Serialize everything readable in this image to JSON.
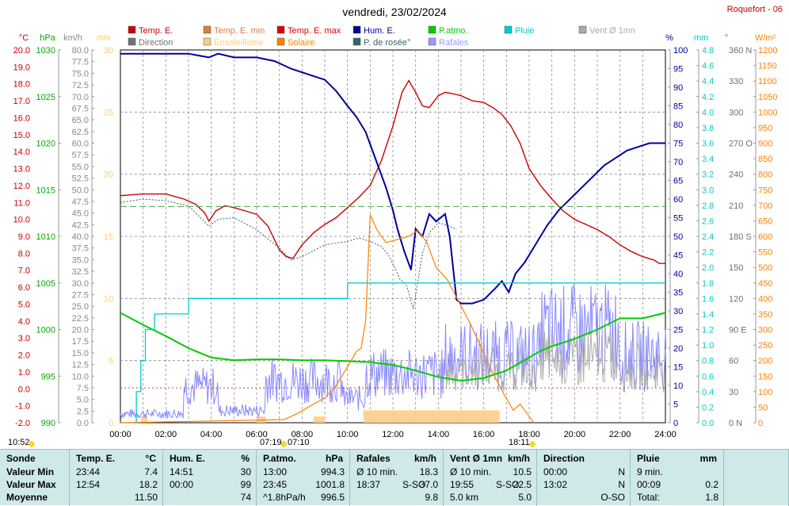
{
  "title": "vendredi, 23/02/2024",
  "station": "Roquefort - 06",
  "legend": [
    {
      "label": "Temp. E.",
      "color": "#cc0000"
    },
    {
      "label": "Temp. E. min",
      "color": "#e07a3a"
    },
    {
      "label": "Temp. E. max",
      "color": "#e00000"
    },
    {
      "label": "Hum. E.",
      "color": "#000099"
    },
    {
      "label": "P.atmo.",
      "color": "#00cc00"
    },
    {
      "label": "Pluie",
      "color": "#00cccc"
    },
    {
      "label": "Vent Ø 1mn",
      "color": "#aaaaaa"
    },
    {
      "label": "Direction",
      "color": "#707070"
    },
    {
      "label": "Ensoleilleme",
      "color": "#ffcc88"
    },
    {
      "label": "Solaire",
      "color": "#ff8000"
    },
    {
      "label": "P. de rosée°",
      "color": "#336666"
    },
    {
      "label": "Rafales",
      "color": "#9999ff"
    }
  ],
  "axes": {
    "temp": {
      "unit": "°C",
      "color": "#cc0000",
      "ticks": [
        "20.0",
        "19.0",
        "18.0",
        "17.0",
        "16.0",
        "15.0",
        "14.0",
        "13.0",
        "12.0",
        "11.0",
        "10.0",
        "9.0",
        "8.0",
        "7.0",
        "6.0",
        "5.0",
        "4.0",
        "3.0",
        "2.0",
        "1.0",
        "0.0",
        "-1.0",
        "-2.0"
      ]
    },
    "press": {
      "unit": "hPa",
      "color": "#00aa00",
      "ticks": [
        "1030",
        "1025",
        "1020",
        "1015",
        "1010",
        "1005",
        "1000",
        "995",
        "990"
      ]
    },
    "wind": {
      "unit": "km/h",
      "color": "#888888",
      "ticks": [
        "80.0",
        "77.5",
        "75.0",
        "72.5",
        "70.0",
        "67.5",
        "65.0",
        "62.5",
        "60.0",
        "57.5",
        "55.0",
        "52.5",
        "50.0",
        "47.5",
        "45.0",
        "42.5",
        "40.0",
        "37.5",
        "35.0",
        "32.5",
        "30.0",
        "27.5",
        "25.0",
        "22.5",
        "20.0",
        "17.5",
        "15.0",
        "12.5",
        "10.0",
        "7.5",
        "5.0",
        "2.5",
        "0.0"
      ]
    },
    "min": {
      "unit": "min",
      "color": "#ffcc66",
      "ticks": [
        "30",
        "25",
        "20",
        "15",
        "10",
        "5",
        "0"
      ]
    },
    "hum": {
      "unit": "%",
      "color": "#000099",
      "ticks": [
        "100",
        "95",
        "90",
        "85",
        "80",
        "75",
        "70",
        "65",
        "60",
        "55",
        "50",
        "45",
        "40",
        "35",
        "30",
        "25",
        "20",
        "15",
        "10",
        "5",
        "0"
      ]
    },
    "rain": {
      "unit": "mm",
      "color": "#00cccc",
      "ticks": [
        "4.8",
        "4.6",
        "4.4",
        "4.2",
        "4.0",
        "3.8",
        "3.6",
        "3.4",
        "3.2",
        "3.0",
        "2.8",
        "2.6",
        "2.4",
        "2.2",
        "2.0",
        "1.8",
        "1.6",
        "1.4",
        "1.2",
        "1.0",
        "0.8",
        "0.6",
        "0.4",
        "0.2",
        "0.0"
      ]
    },
    "dir": {
      "unit": "°",
      "color": "#707070",
      "ticks": [
        "360 N",
        "330",
        "300",
        "270 O",
        "240",
        "210",
        "180 S",
        "150",
        "120",
        "90 E",
        "60",
        "30",
        "0 N"
      ]
    },
    "solar": {
      "unit": "W/m²",
      "color": "#ff8000",
      "ticks": [
        "1200",
        "1150",
        "1100",
        "1050",
        "1000",
        "950",
        "900",
        "850",
        "800",
        "750",
        "700",
        "650",
        "600",
        "550",
        "500",
        "450",
        "400",
        "350",
        "300",
        "250",
        "200",
        "150",
        "100",
        "50",
        "0"
      ]
    },
    "time": {
      "ticks": [
        "00:00",
        "02:00",
        "04:00",
        "06:00",
        "08:00",
        "10:00",
        "12:00",
        "14:00",
        "16:00",
        "18:00",
        "20:00",
        "22:00",
        "24:00"
      ]
    }
  },
  "markers": {
    "sunrise": "07:19",
    "sunrise2": "07:10",
    "sunset": "18:11",
    "left_time": "10:52"
  },
  "chart_data": {
    "type": "line",
    "x_unit": "hours",
    "x_range": [
      0,
      24
    ],
    "temp_range": [
      -2,
      20
    ],
    "hum_range": [
      0,
      100
    ],
    "press_range": [
      990,
      1030
    ],
    "solar_range": [
      0,
      1200
    ],
    "rain_range": [
      0,
      4.8
    ],
    "wind_range": [
      0,
      80
    ],
    "series": [
      {
        "name": "Temp. E.",
        "axis": "temp",
        "x": [
          0,
          1,
          2,
          2.8,
          3.3,
          3.7,
          3.9,
          4.2,
          4.6,
          5.0,
          5.5,
          6.0,
          6.5,
          7.0,
          7.3,
          7.6,
          8.0,
          8.5,
          9.0,
          9.5,
          10.0,
          10.5,
          11.0,
          11.5,
          12.0,
          12.4,
          12.7,
          13.0,
          13.3,
          13.6,
          14.0,
          14.3,
          14.7,
          15.0,
          15.5,
          16.0,
          16.4,
          16.8,
          17.2,
          17.6,
          18.0,
          18.5,
          19.0,
          19.5,
          20.0,
          20.5,
          21.0,
          21.5,
          22.0,
          22.5,
          23.0,
          23.5,
          23.73,
          24.0
        ],
        "values": [
          11.4,
          11.5,
          11.5,
          11.2,
          10.9,
          10.4,
          9.9,
          10.5,
          10.8,
          10.7,
          10.5,
          10.3,
          9.6,
          8.2,
          7.8,
          7.7,
          8.5,
          9.2,
          9.7,
          10.1,
          10.7,
          11.3,
          12.0,
          13.5,
          15.5,
          17.5,
          18.2,
          17.5,
          16.7,
          16.6,
          17.3,
          17.5,
          17.4,
          17.3,
          17.0,
          16.9,
          16.6,
          16.2,
          15.5,
          14.5,
          13.0,
          12.0,
          11.2,
          10.5,
          10.0,
          9.7,
          9.4,
          9.0,
          8.5,
          8.1,
          7.8,
          7.6,
          7.4,
          7.4
        ]
      },
      {
        "name": "P. de rosée°",
        "axis": "temp",
        "x": [
          0,
          1,
          2,
          3,
          3.9,
          4.3,
          5,
          6,
          7,
          7.5,
          8,
          9,
          10,
          10.5,
          11,
          11.5,
          11.8,
          12.1,
          12.3,
          12.6,
          12.9,
          13.3,
          13.6,
          14,
          14.5,
          14.8
        ],
        "values": [
          11.0,
          11.2,
          11.1,
          10.8,
          9.6,
          10.0,
          10.1,
          9.4,
          8.3,
          7.6,
          7.8,
          8.5,
          8.7,
          8.9,
          8.7,
          8.4,
          7.9,
          7.1,
          6.5,
          6.1,
          4.7,
          8.0,
          9.2,
          9.8,
          9.6,
          9.4
        ]
      },
      {
        "name": "Hum. E.",
        "axis": "hum",
        "x": [
          0,
          1.5,
          3,
          3.9,
          4.3,
          5,
          6,
          6.8,
          7.5,
          8.5,
          9.0,
          9.5,
          10.0,
          10.4,
          10.8,
          11.1,
          11.4,
          11.7,
          12.0,
          12.2,
          12.5,
          12.8,
          13.0,
          13.3,
          13.6,
          13.9,
          14.3,
          14.5,
          14.8,
          15.0,
          15.5,
          16.0,
          16.5,
          16.8,
          17.1,
          17.4,
          17.8,
          18.3,
          18.8,
          19.3,
          19.8,
          20.3,
          20.8,
          21.3,
          21.8,
          22.3,
          22.8,
          23.3,
          24.0
        ],
        "values": [
          99,
          99,
          99,
          98,
          99,
          98,
          98,
          97,
          95,
          93,
          92,
          89,
          85,
          82,
          78,
          73,
          68,
          63,
          57,
          52,
          46,
          41,
          52,
          50,
          56,
          54,
          56,
          50,
          33,
          32,
          32,
          33,
          36,
          38,
          35,
          40,
          43,
          48,
          53,
          57,
          60,
          63,
          66,
          69,
          71,
          73,
          74,
          75,
          75
        ]
      },
      {
        "name": "P.atmo.",
        "axis": "press",
        "x": [
          0,
          1,
          2,
          3,
          4,
          5,
          6,
          7,
          8,
          9,
          10,
          11,
          12,
          13,
          14,
          15,
          16,
          17,
          17.5,
          18,
          18.5,
          19,
          20,
          21,
          22,
          23,
          24
        ],
        "values": [
          1001.8,
          1000.5,
          999.3,
          998.0,
          997.0,
          996.7,
          996.8,
          996.8,
          996.7,
          996.7,
          996.6,
          996.5,
          996.2,
          995.6,
          994.9,
          994.5,
          994.8,
          995.6,
          996.3,
          997.0,
          997.7,
          998.2,
          999.0,
          1000.0,
          1001.2,
          1001.2,
          1001.8
        ]
      },
      {
        "name": "Pluie",
        "axis": "rain",
        "x": [
          0,
          0.4,
          0.7,
          0.9,
          1.1,
          1.5,
          2.9,
          3.0,
          7.0,
          9.9,
          10.0,
          24
        ],
        "values": [
          0,
          0,
          0.4,
          0.8,
          1.2,
          1.4,
          1.4,
          1.6,
          1.6,
          1.6,
          1.8,
          1.8
        ]
      },
      {
        "name": "Solaire",
        "axis": "solar",
        "x": [
          0,
          7.2,
          7.8,
          8.5,
          9.0,
          9.5,
          10.0,
          10.4,
          10.6,
          10.8,
          11.0,
          11.3,
          11.7,
          12.2,
          12.7,
          13.1,
          13.5,
          13.9,
          14.4,
          14.9,
          15.4,
          15.9,
          16.4,
          16.9,
          17.3,
          17.6,
          17.9,
          18.2
        ],
        "values": [
          0,
          10,
          30,
          60,
          80,
          120,
          180,
          230,
          240,
          330,
          670,
          620,
          580,
          590,
          600,
          620,
          580,
          500,
          460,
          390,
          320,
          240,
          160,
          90,
          40,
          60,
          30,
          0
        ]
      }
    ],
    "wind_avg_peak_kmh": 22.5,
    "gust_peak_kmh": 37.0
  },
  "stats": {
    "sonde": {
      "header": "Sonde",
      "rows": [
        "Valeur Min",
        "Valeur Max",
        "Moyenne"
      ]
    },
    "temp": {
      "header": "Temp. E.",
      "unit": "°C",
      "rows": [
        [
          "23:44",
          "7.4"
        ],
        [
          "12:54",
          "18.2"
        ],
        [
          "",
          "11.50"
        ]
      ]
    },
    "hum": {
      "header": "Hum. E.",
      "unit": "%",
      "rows": [
        [
          "14:51",
          "30"
        ],
        [
          "00:00",
          "99"
        ],
        [
          "",
          "74"
        ]
      ]
    },
    "press": {
      "header": "P.atmo.",
      "unit": "hPa",
      "rows": [
        [
          "13:00",
          "994.3"
        ],
        [
          "23:45",
          "1001.8"
        ],
        [
          "^1.8hPa/h",
          "996.5"
        ]
      ]
    },
    "gust": {
      "header": "Rafales",
      "unit": "km/h",
      "rows": [
        [
          "Ø 10 min.",
          "",
          "18.3"
        ],
        [
          "18:37",
          "S-SO",
          "37.0"
        ],
        [
          "",
          "",
          "9.8"
        ]
      ]
    },
    "wind": {
      "header": "Vent Ø 1mn",
      "unit": "km/h",
      "rows": [
        [
          "Ø 10 min.",
          "",
          "10.5"
        ],
        [
          "19:55",
          "S-SO",
          "22.5"
        ],
        [
          "5.0 km",
          "",
          "5.0"
        ]
      ]
    },
    "dir": {
      "header": "Direction",
      "rows": [
        [
          "00:00",
          "N"
        ],
        [
          "13:02",
          "N"
        ],
        [
          "",
          "O-SO"
        ]
      ]
    },
    "rain": {
      "header": "Pluie",
      "unit": "mm",
      "rows": [
        [
          "9 min.",
          ""
        ],
        [
          "00:09",
          "0.2"
        ],
        [
          "Total:",
          "1.8"
        ]
      ]
    }
  }
}
